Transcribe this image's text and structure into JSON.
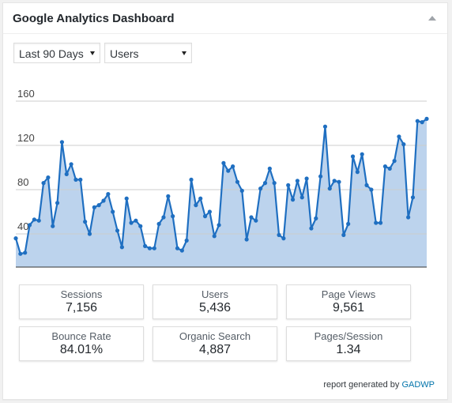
{
  "widget": {
    "title": "Google Analytics Dashboard"
  },
  "controls": {
    "period": "Last 90 Days",
    "metric": "Users"
  },
  "colors": {
    "line": "#1f6fc1",
    "fill": "#bcd3ed",
    "grid": "#cccccc",
    "link": "#0073aa"
  },
  "chart_data": {
    "type": "area",
    "x": [
      1,
      2,
      3,
      4,
      5,
      6,
      7,
      8,
      9,
      10,
      11,
      12,
      13,
      14,
      15,
      16,
      17,
      18,
      19,
      20,
      21,
      22,
      23,
      24,
      25,
      26,
      27,
      28,
      29,
      30,
      31,
      32,
      33,
      34,
      35,
      36,
      37,
      38,
      39,
      40,
      41,
      42,
      43,
      44,
      45,
      46,
      47,
      48,
      49,
      50,
      51,
      52,
      53,
      54,
      55,
      56,
      57,
      58,
      59,
      60,
      61,
      62,
      63,
      64,
      65,
      66,
      67,
      68,
      69,
      70,
      71,
      72,
      73,
      74,
      75,
      76,
      77,
      78,
      79,
      80,
      81,
      82,
      83,
      84,
      85,
      86,
      87,
      88,
      89,
      90
    ],
    "values": [
      36,
      22,
      23,
      48,
      53,
      52,
      86,
      91,
      47,
      68,
      123,
      94,
      103,
      89,
      89,
      51,
      40,
      64,
      66,
      70,
      76,
      60,
      43,
      28,
      72,
      50,
      52,
      47,
      29,
      27,
      27,
      49,
      55,
      74,
      56,
      27,
      25,
      34,
      89,
      66,
      72,
      56,
      60,
      38,
      48,
      104,
      97,
      101,
      87,
      79,
      35,
      55,
      52,
      81,
      86,
      99,
      86,
      39,
      36,
      84,
      71,
      88,
      73,
      90,
      45,
      54,
      92,
      137,
      81,
      88,
      87,
      39,
      49,
      110,
      96,
      112,
      84,
      80,
      50,
      50,
      101,
      99,
      106,
      128,
      121,
      55,
      73,
      142,
      141,
      144
    ],
    "ylim": [
      10,
      170
    ],
    "yticks": [
      "40",
      "80",
      "120",
      "160"
    ],
    "ytick_values": [
      40,
      80,
      120,
      160
    ],
    "grid": true
  },
  "stats": [
    {
      "label": "Sessions",
      "value": "7,156"
    },
    {
      "label": "Users",
      "value": "5,436"
    },
    {
      "label": "Page Views",
      "value": "9,561"
    },
    {
      "label": "Bounce Rate",
      "value": "84.01%"
    },
    {
      "label": "Organic Search",
      "value": "4,887"
    },
    {
      "label": "Pages/Session",
      "value": "1.34"
    }
  ],
  "footer": {
    "prefix": "report generated by",
    "link": "GADWP"
  }
}
